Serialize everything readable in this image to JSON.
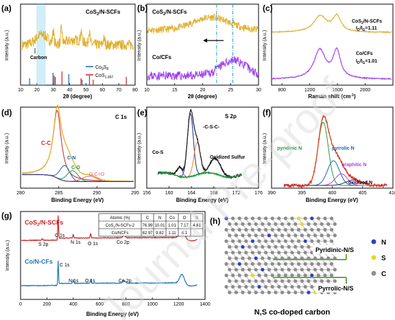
{
  "colors": {
    "gold": "#e0b030",
    "purple": "#a040f0",
    "red": "#d02020",
    "blue": "#1a5fb4",
    "green": "#1e9a3a",
    "orange": "#f08020",
    "navy": "#1e2a8a",
    "teal": "#2aa08c",
    "magenta": "#b040e0",
    "grey": "#909090",
    "yellow": "#e8d820",
    "dkblue": "#3040c0"
  },
  "watermark": "Journal Pre-proof",
  "chart_data": [
    {
      "panel": "(a)",
      "type": "line",
      "series": [
        {
          "name": "CoS2/N-SCFs"
        }
      ],
      "xlabel": "2θ (degree)",
      "ylabel": "Intensity (a.u.)",
      "xlim": [
        10,
        80
      ],
      "xticks": [
        "10",
        "20",
        "30",
        "40",
        "50",
        "60",
        "70",
        "80"
      ],
      "annotations": [
        "Carbon"
      ],
      "legend": [
        "Co9S8",
        "CoS1.097"
      ],
      "reference_peaks": {
        "Co9S8": [
          15.5,
          29.8,
          31.2,
          39.5,
          47.6,
          52.1
        ],
        "CoS1.097": [
          30.5,
          35.3,
          46.9,
          54.4,
          74.6
        ]
      },
      "highlight_range": [
        20,
        25
      ]
    },
    {
      "panel": "(b)",
      "type": "line",
      "series": [
        {
          "name": "CoS2/N-SCFs"
        },
        {
          "name": "Co/CFs"
        }
      ],
      "xlabel": "2θ (degree)",
      "ylabel": "Intensity (a.u.)",
      "xlim": [
        10,
        30
      ],
      "xticks": [
        "10",
        "15",
        "20",
        "25",
        "30"
      ],
      "marker_lines": [
        22.5,
        25.4
      ]
    },
    {
      "panel": "(c)",
      "type": "line",
      "series": [
        {
          "name": "CoS2/N-SCFs",
          "ratio": "ID/IG=1.11"
        },
        {
          "name": "Co/CFs",
          "ratio": "ID/IG=1.01"
        }
      ],
      "xlabel": "Raman shift (cm-1)",
      "ylabel": "Intensity (a.u.)",
      "xlim": [
        650,
        2400
      ],
      "xticks": [
        "800",
        "1200",
        "1600",
        "2000"
      ]
    },
    {
      "panel": "(d)",
      "title": "C 1s",
      "type": "line",
      "xlabel": "Binding Energy (eV)",
      "ylabel": "Intensity (a.u.)",
      "xlim": [
        280,
        295
      ],
      "xticks": [
        "280",
        "285",
        "290",
        "295"
      ],
      "components": [
        "C-C",
        "C-N",
        "C-O",
        "O-C=O"
      ]
    },
    {
      "panel": "(e)",
      "title": "S 2p",
      "type": "line",
      "xlabel": "Binding Energy (eV)",
      "ylabel": "Intensity (a.u.)",
      "xlim": [
        156,
        176
      ],
      "xticks": [
        "156",
        "160",
        "164",
        "168",
        "172",
        "176"
      ],
      "components": [
        "-C-S-C-",
        "Co-S",
        "Oxidized Sulfur"
      ]
    },
    {
      "panel": "(f)",
      "type": "line",
      "xlabel": "Binding Energy (eV)",
      "ylabel": "Intensity (a.u.)",
      "xlim": [
        390,
        410
      ],
      "xticks": [
        "390",
        "395",
        "400",
        "405",
        "410"
      ],
      "components": [
        "pyridinic N",
        "pyrrolic N",
        "graphitic N",
        "oxidized N"
      ]
    },
    {
      "panel": "(g)",
      "type": "line",
      "series": [
        {
          "name": "CoS2/N-SCFs"
        },
        {
          "name": "Co/N-CFs"
        }
      ],
      "xlabel": "Binding Energy (eV)",
      "ylabel": "Intensity (a.u.)",
      "xlim": [
        0,
        1400
      ],
      "xticks": [
        "0",
        "200",
        "400",
        "600",
        "800",
        "1000",
        "1200",
        "1400"
      ],
      "peak_labels_top": [
        "S 2p",
        "C 1s",
        "N 1s",
        "O 1s",
        "Co 2p"
      ],
      "peak_labels_bottom": [
        "C 1s",
        "N 1s",
        "O 1s",
        "Co 2p"
      ],
      "table": {
        "header": [
          "Atomic (%)",
          "C",
          "N",
          "Co",
          "O",
          "S"
        ],
        "rows": [
          [
            "CoS2/N-SCFs-2",
            "76.99",
            "10.01",
            "1.01",
            "7.17",
            "4.81"
          ],
          [
            "Co/NCFs",
            "82.97",
            "9.82",
            "1.11",
            "6.1",
            ""
          ]
        ]
      }
    },
    {
      "panel": "(h)",
      "type": "diagram",
      "title": "N,S co-doped carbon",
      "labels": [
        "Pyridinic-N/S",
        "Pyrrolic-N/S"
      ],
      "legend": [
        "N",
        "S",
        "C"
      ]
    }
  ]
}
